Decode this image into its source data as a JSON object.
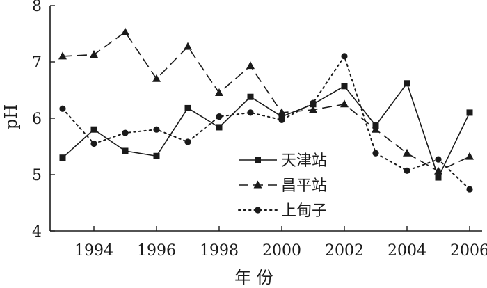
{
  "chart_data": {
    "type": "line",
    "xlabel": "年 份",
    "ylabel": "pH",
    "xlim": [
      1992.6,
      2006.4
    ],
    "ylim": [
      4,
      8
    ],
    "xticks": [
      1994,
      1996,
      1998,
      2000,
      2002,
      2004,
      2006
    ],
    "yticks": [
      4,
      5,
      6,
      7,
      8
    ],
    "x": [
      1993,
      1994,
      1995,
      1996,
      1997,
      1998,
      1999,
      2000,
      2001,
      2002,
      2003,
      2004,
      2005,
      2006
    ],
    "series": [
      {
        "name": "天津站",
        "marker": "square",
        "dash": "solid",
        "values": [
          5.3,
          5.8,
          5.42,
          5.33,
          6.18,
          5.84,
          6.38,
          6.03,
          6.25,
          6.57,
          5.87,
          6.62,
          4.95,
          6.1
        ]
      },
      {
        "name": "昌平站",
        "marker": "triangle",
        "dash": "dashed",
        "values": [
          7.1,
          7.13,
          7.53,
          6.7,
          7.27,
          6.45,
          6.93,
          6.1,
          6.15,
          6.25,
          5.8,
          5.38,
          5.06,
          5.32
        ]
      },
      {
        "name": "上甸子",
        "marker": "circle",
        "dash": "dotted",
        "values": [
          6.17,
          5.55,
          5.74,
          5.8,
          5.58,
          6.03,
          6.1,
          5.97,
          6.27,
          7.1,
          5.38,
          5.07,
          5.27,
          4.74
        ]
      }
    ],
    "legend_position": "center-right",
    "grid": false
  },
  "colors": {
    "ink": "#1a1a1a",
    "background": "#ffffff"
  }
}
